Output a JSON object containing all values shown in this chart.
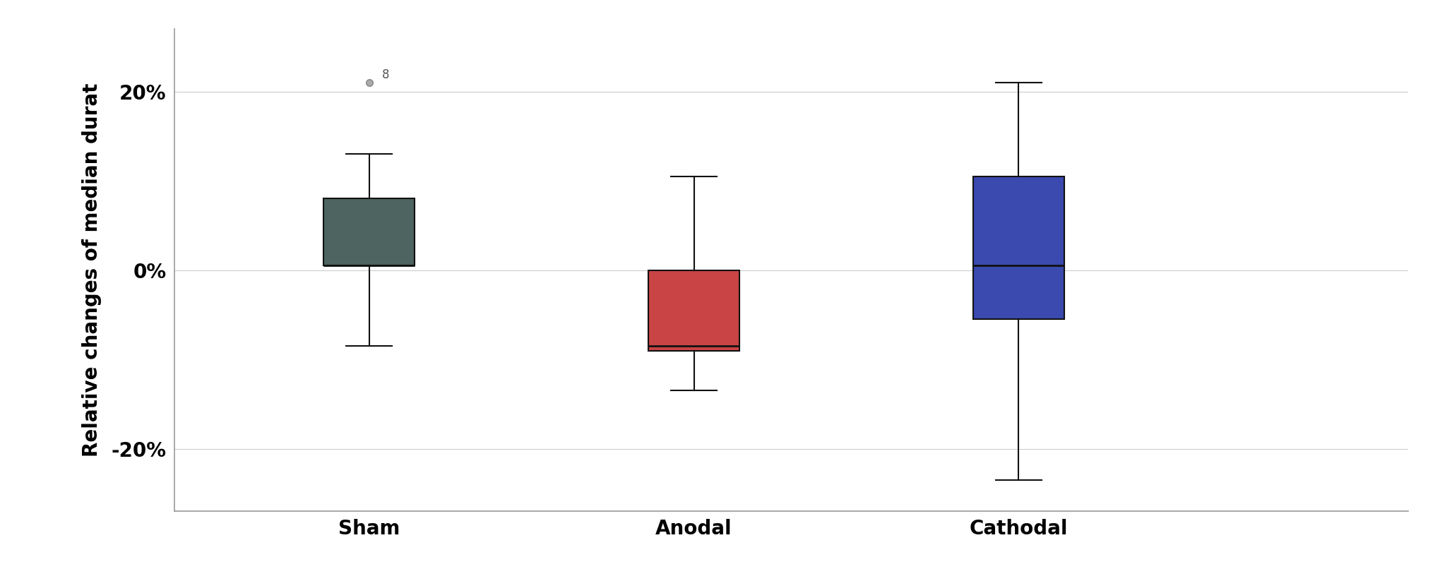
{
  "categories": [
    "Sham",
    "Anodal",
    "Cathodal"
  ],
  "colors": [
    "#4d6460",
    "#c94444",
    "#3b4aaf"
  ],
  "ylabel": "Relative changes of median durat",
  "yticks": [
    -20,
    0,
    20
  ],
  "ytick_labels": [
    "-20%",
    "0%",
    "20%"
  ],
  "ylim": [
    -27,
    27
  ],
  "xlim": [
    0.4,
    4.2
  ],
  "positions": [
    1,
    2,
    3
  ],
  "box_width": 0.28,
  "background_color": "#ffffff",
  "grid_color": "#cccccc",
  "boxes": [
    {
      "label": "Sham",
      "q1": 0.5,
      "median": 0.5,
      "q3": 8.0,
      "whislo": -8.5,
      "whishi": 13.0,
      "fliers": [
        21.0
      ],
      "flier_label": "8"
    },
    {
      "label": "Anodal",
      "q1": -9.0,
      "median": -8.5,
      "q3": 0.0,
      "whislo": -13.5,
      "whishi": 10.5,
      "fliers": [],
      "flier_label": ""
    },
    {
      "label": "Cathodal",
      "q1": -5.5,
      "median": 0.5,
      "q3": 10.5,
      "whislo": -23.5,
      "whishi": 21.0,
      "fliers": [],
      "flier_label": ""
    }
  ],
  "title_fontsize": 18,
  "tick_fontsize": 20,
  "ylabel_fontsize": 20,
  "xlabel_fontsize": 20
}
